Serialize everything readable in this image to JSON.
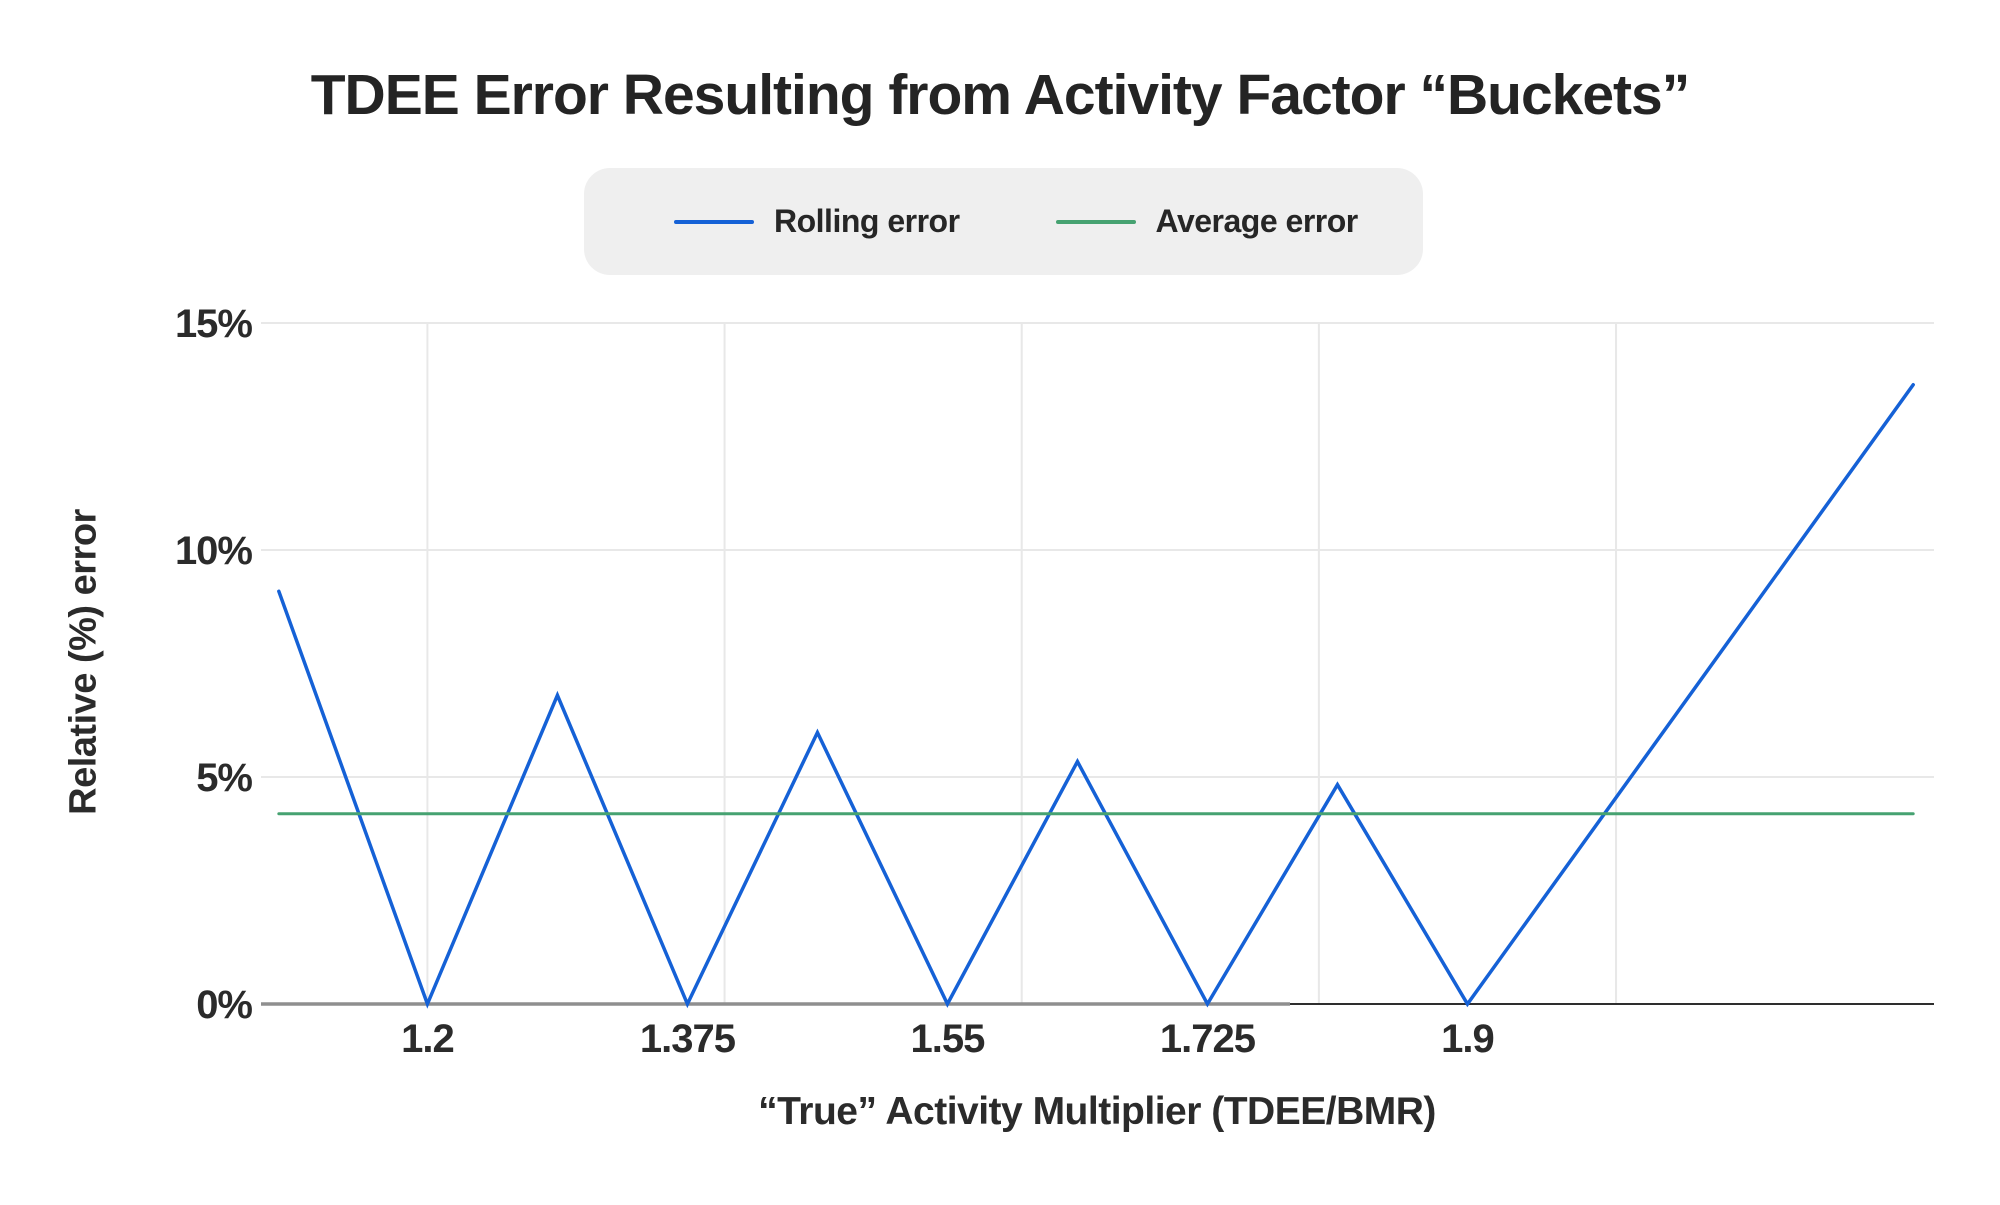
{
  "page": {
    "background": "#ffffff",
    "text_color": "#2b2b2b"
  },
  "legend": {
    "items": [
      {
        "label": "Rolling error",
        "color": "#1561d6"
      },
      {
        "label": "Average error",
        "color": "#46a271"
      }
    ],
    "background": "#efefef"
  },
  "chart_data": {
    "type": "line",
    "title": "TDEE Error Resulting from Activity Factor “Buckets”",
    "xlabel": "“True” Activity Multiplier (TDEE/BMR)",
    "ylabel": "Relative (%) error",
    "xlim": [
      1.088,
      2.214
    ],
    "ylim": [
      0,
      15
    ],
    "grid": true,
    "legend_position": "top",
    "x_ticks": [
      {
        "value": 1.2,
        "label": "1.2"
      },
      {
        "value": 1.375,
        "label": "1.375"
      },
      {
        "value": 1.55,
        "label": "1.55"
      },
      {
        "value": 1.725,
        "label": "1.725"
      },
      {
        "value": 1.9,
        "label": "1.9"
      }
    ],
    "x_gridlines": [
      1.2,
      1.4,
      1.6,
      1.8,
      2.0
    ],
    "y_ticks": [
      {
        "value": 0,
        "label": "0%"
      },
      {
        "value": 5,
        "label": "5%"
      },
      {
        "value": 10,
        "label": "10%"
      },
      {
        "value": 15,
        "label": "15%"
      }
    ],
    "series": [
      {
        "name": "Rolling error",
        "color": "#1561d6",
        "width": 3.5,
        "points": [
          [
            1.1,
            9.09
          ],
          [
            1.2,
            0
          ],
          [
            1.2875,
            6.8
          ],
          [
            1.375,
            0
          ],
          [
            1.4625,
            5.98
          ],
          [
            1.55,
            0
          ],
          [
            1.6375,
            5.34
          ],
          [
            1.725,
            0
          ],
          [
            1.8125,
            4.83
          ],
          [
            1.9,
            0
          ],
          [
            2.2,
            13.64
          ]
        ]
      },
      {
        "name": "Average error",
        "color": "#46a271",
        "width": 3,
        "points": [
          [
            1.1,
            4.19
          ],
          [
            2.2,
            4.19
          ]
        ]
      }
    ],
    "axis_colors": {
      "baseline_gray": "#8f8f8f",
      "baseline_dark": "#2e2e2e",
      "gridline": "#e8e8e8"
    }
  }
}
